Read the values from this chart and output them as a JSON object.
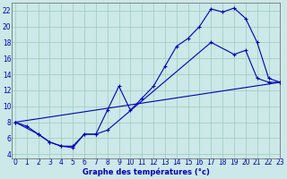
{
  "xlabel": "Graphe des températures (°c)",
  "bg_color": "#cce8e8",
  "line_color": "#0000bb",
  "grid_color": "#99ccbb",
  "ylim": [
    3.5,
    23
  ],
  "xlim": [
    -0.3,
    23
  ],
  "yticks": [
    4,
    6,
    8,
    10,
    12,
    14,
    16,
    18,
    20,
    22
  ],
  "xticks": [
    0,
    1,
    2,
    3,
    4,
    5,
    6,
    7,
    8,
    9,
    10,
    11,
    12,
    13,
    14,
    15,
    16,
    17,
    18,
    19,
    20,
    21,
    22,
    23
  ],
  "curve1_x": [
    0,
    1,
    2,
    3,
    4,
    5,
    6,
    7,
    8,
    9,
    10,
    11,
    12,
    13,
    14,
    15,
    16,
    17,
    18,
    19,
    20,
    21,
    22,
    23
  ],
  "curve1_y": [
    8.0,
    7.5,
    6.5,
    5.5,
    5.0,
    5.0,
    6.5,
    6.5,
    9.5,
    12.5,
    9.5,
    11.0,
    12.5,
    15.0,
    17.5,
    18.5,
    20.0,
    22.2,
    21.8,
    22.3,
    21.0,
    18.0,
    13.5,
    13.0
  ],
  "curve2_x": [
    0,
    23
  ],
  "curve2_y": [
    8.0,
    13.0
  ],
  "curve3_x": [
    0,
    2,
    3,
    4,
    5,
    6,
    7,
    8,
    17,
    19,
    20,
    21,
    22,
    23
  ],
  "curve3_y": [
    8.0,
    6.5,
    5.5,
    5.0,
    4.8,
    6.5,
    6.5,
    7.0,
    18.0,
    16.5,
    17.0,
    13.5,
    13.0,
    13.0
  ]
}
